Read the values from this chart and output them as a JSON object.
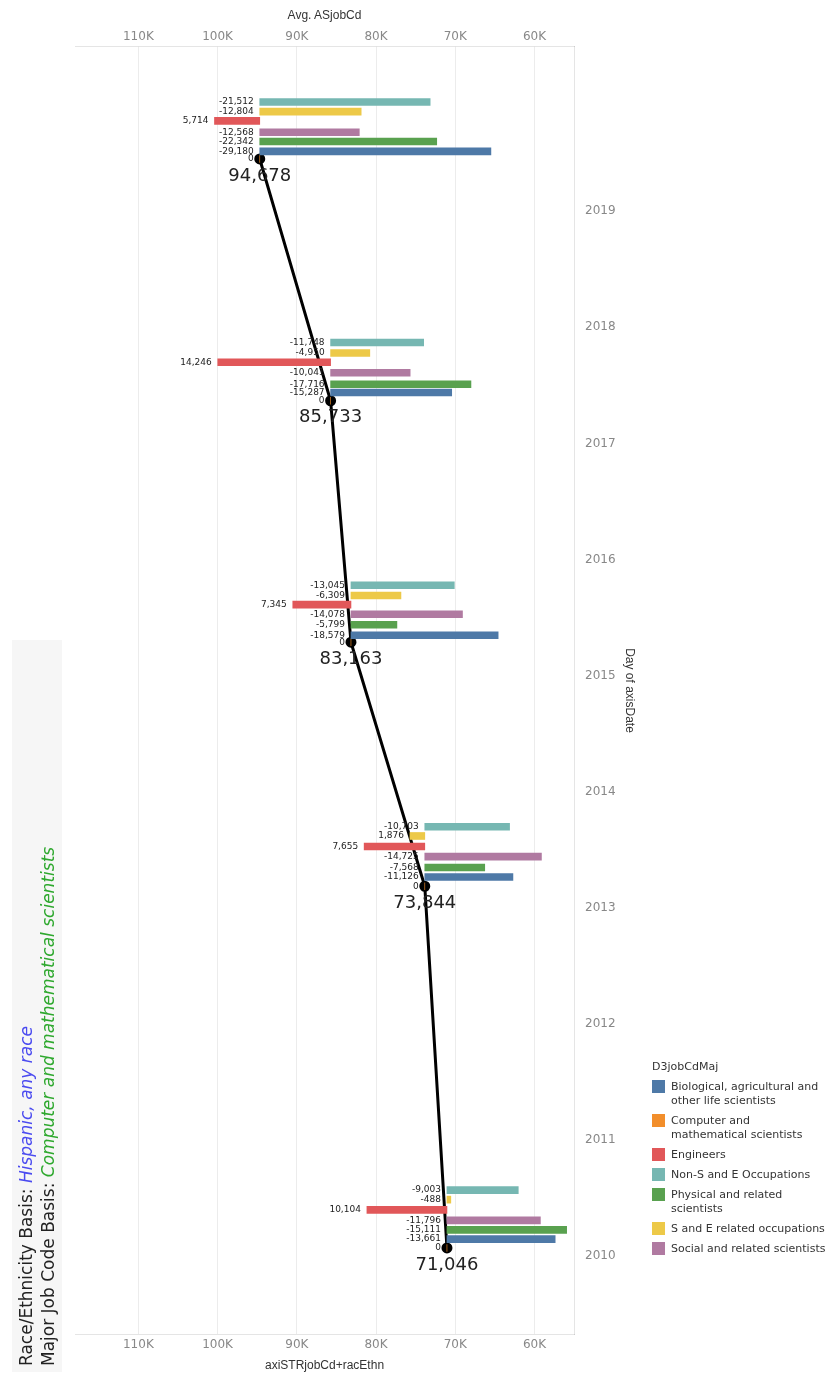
{
  "chart_data": {
    "type": "bar",
    "orientation": "horizontal",
    "title": "Race/Ethnicity Basis:  Hispanic, any race",
    "subtitle": "Major Job Code Basis:  Computer and mathematical scientists",
    "xlabel": "axiSTRjobCd+racEthn",
    "x2label": "Avg. ASjobCd",
    "ylabel": "Day of axisDate",
    "legend_title": "D3jobCdMaj",
    "legend": "bottom right",
    "grid": "x",
    "ylim": [
      "2009-05-01",
      "2020-06-01"
    ],
    "yticks": [
      "2010",
      "2011",
      "2012",
      "2013",
      "2014",
      "2015",
      "2016",
      "2017",
      "2018",
      "2019"
    ],
    "xlim": [
      118000,
      55000
    ],
    "xticks": [
      {
        "value": 60000,
        "label": "60K"
      },
      {
        "value": 70000,
        "label": "70K"
      },
      {
        "value": 80000,
        "label": "80K"
      },
      {
        "value": 90000,
        "label": "90K"
      },
      {
        "value": 100000,
        "label": "100K"
      },
      {
        "value": 110000,
        "label": "110K"
      }
    ],
    "x2lim": [
      118000,
      55000
    ],
    "x2ticks": [
      {
        "value": 60000,
        "label": "60K"
      },
      {
        "value": 70000,
        "label": "70K"
      },
      {
        "value": 80000,
        "label": "80K"
      },
      {
        "value": 90000,
        "label": "90K"
      },
      {
        "value": 100000,
        "label": "100K"
      },
      {
        "value": 110000,
        "label": "110K"
      }
    ],
    "series": [
      {
        "name": "Biological, agricultural and other life scientists",
        "color": "#4e79a7",
        "x": [
          "2010-02-24",
          "2013-04-08",
          "2015-05-08",
          "2017-06-10",
          "2019-07-08"
        ],
        "base": [
          71046,
          73844,
          83163,
          85733,
          94678
        ],
        "values": [
          -13661,
          -11126,
          -18579,
          -15287,
          -29180
        ],
        "value_labels": [
          "-13,661",
          "-11,126",
          "-18,579",
          "-15,287",
          "-29,180"
        ]
      },
      {
        "name": "Computer and mathematical scientists",
        "color": "#f28e2b",
        "x": [
          "2010-01-27",
          "2013-03-10",
          "2015-04-16",
          "2017-05-15",
          "2019-06-14"
        ],
        "base": [
          71046,
          73844,
          83163,
          85733,
          94678
        ],
        "values": [
          0,
          0,
          0,
          0,
          0
        ],
        "value_labels": [
          "0",
          "0",
          "0",
          "0",
          "0"
        ]
      },
      {
        "name": "Engineers",
        "color": "#e15759",
        "x": [
          "2010-05-27",
          "2013-07-13",
          "2015-08-12",
          "2017-09-13",
          "2019-10-12"
        ],
        "base": [
          71046,
          73844,
          83163,
          85733,
          94678
        ],
        "values": [
          10104,
          7655,
          7345,
          14246,
          5714
        ],
        "value_labels": [
          "10,104",
          "7,655",
          "7,345",
          "14,246",
          "5,714"
        ]
      },
      {
        "name": "Non-S and E Occupations",
        "color": "#76b7b2",
        "x": [
          "2010-07-28",
          "2013-09-13",
          "2015-10-12",
          "2017-11-14",
          "2019-12-10"
        ],
        "base": [
          71046,
          73844,
          83163,
          85733,
          94678
        ],
        "values": [
          -9003,
          -10703,
          -13045,
          -11748,
          -21512
        ],
        "value_labels": [
          "-9,003",
          "-10,703",
          "-13,045",
          "-11,748",
          "-21,512"
        ]
      },
      {
        "name": "Physical and related scientists",
        "color": "#59a14f",
        "x": [
          "2010-03-25",
          "2013-05-08",
          "2015-06-10",
          "2017-07-06",
          "2019-08-08"
        ],
        "base": [
          71046,
          73844,
          83163,
          85733,
          94678
        ],
        "values": [
          -15111,
          -7568,
          -5799,
          -17716,
          -22342
        ],
        "value_labels": [
          "-15,111",
          "-7,568",
          "-5,799",
          "-17,716",
          "-22,342"
        ]
      },
      {
        "name": "S and E related occupations",
        "color": "#edc948",
        "x": [
          "2010-06-28",
          "2013-08-15",
          "2015-09-10",
          "2017-10-12",
          "2019-11-10"
        ],
        "base": [
          71046,
          73844,
          83163,
          85733,
          94678
        ],
        "values": [
          -488,
          1876,
          -6309,
          -4950,
          -12804
        ],
        "value_labels": [
          "-488",
          "1,876",
          "-6,309",
          "-4,950",
          "-12,804"
        ]
      },
      {
        "name": "Social and related scientists",
        "color": "#b07aa1",
        "x": [
          "2010-04-24",
          "2013-06-11",
          "2015-07-13",
          "2017-08-11",
          "2019-09-06"
        ],
        "base": [
          71046,
          73844,
          83163,
          85733,
          94678
        ],
        "values": [
          -11796,
          -14725,
          -14078,
          -10041,
          -12568
        ],
        "value_labels": [
          "-11,796",
          "-14,725",
          "-14,078",
          "-10,041",
          "-12,568"
        ]
      },
      {
        "type": "line",
        "axis": "x2",
        "color": "#000000",
        "marker": "circle",
        "line_style": "solid",
        "x": [
          "2010-01-27",
          "2013-03-10",
          "2015-04-16",
          "2017-05-15",
          "2019-06-14"
        ],
        "values": [
          71046,
          73844,
          83163,
          85733,
          94678
        ],
        "value_labels": [
          "71,046",
          "73,844",
          "83,163",
          "85,733",
          "94,678"
        ]
      }
    ]
  }
}
